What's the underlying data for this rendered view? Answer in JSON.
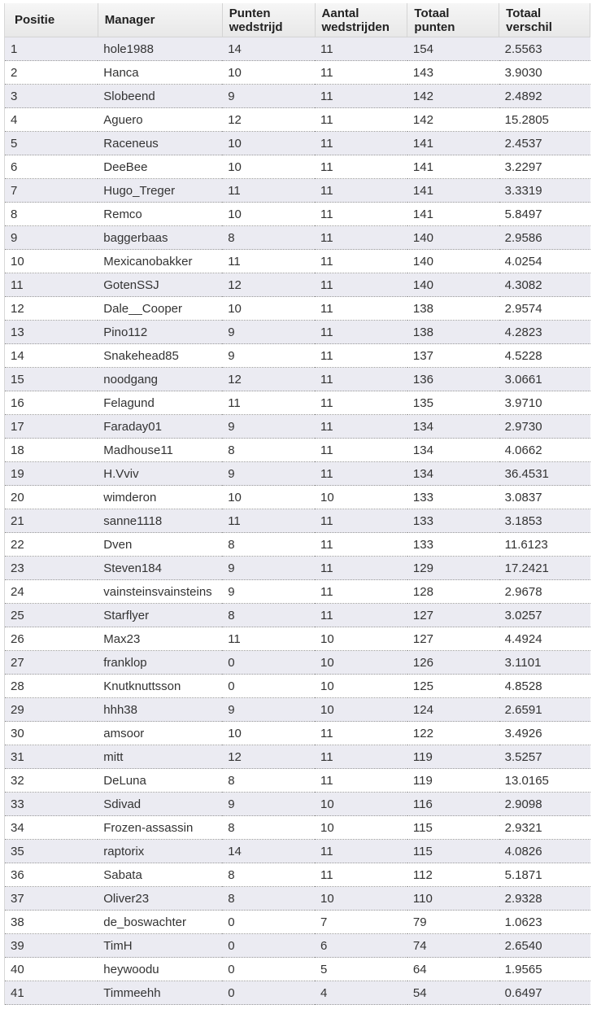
{
  "table": {
    "headers": [
      [
        "Positie",
        ""
      ],
      [
        "Manager",
        ""
      ],
      [
        "Punten",
        "wedstrijd"
      ],
      [
        "Aantal",
        "wedstrijden"
      ],
      [
        "Totaal",
        "punten"
      ],
      [
        "Totaal",
        "verschil"
      ]
    ],
    "rows": [
      [
        "1",
        "hole1988",
        "14",
        "11",
        "154",
        "2.5563"
      ],
      [
        "2",
        "Hanca",
        "10",
        "11",
        "143",
        "3.9030"
      ],
      [
        "3",
        "Slobeend",
        "9",
        "11",
        "142",
        "2.4892"
      ],
      [
        "4",
        "Aguero",
        "12",
        "11",
        "142",
        "15.2805"
      ],
      [
        "5",
        "Raceneus",
        "10",
        "11",
        "141",
        "2.4537"
      ],
      [
        "6",
        "DeeBee",
        "10",
        "11",
        "141",
        "3.2297"
      ],
      [
        "7",
        "Hugo_Treger",
        "11",
        "11",
        "141",
        "3.3319"
      ],
      [
        "8",
        "Remco",
        "10",
        "11",
        "141",
        "5.8497"
      ],
      [
        "9",
        "baggerbaas",
        "8",
        "11",
        "140",
        "2.9586"
      ],
      [
        "10",
        "Mexicanobakker",
        "11",
        "11",
        "140",
        "4.0254"
      ],
      [
        "11",
        "GotenSSJ",
        "12",
        "11",
        "140",
        "4.3082"
      ],
      [
        "12",
        "Dale__Cooper",
        "10",
        "11",
        "138",
        "2.9574"
      ],
      [
        "13",
        "Pino112",
        "9",
        "11",
        "138",
        "4.2823"
      ],
      [
        "14",
        "Snakehead85",
        "9",
        "11",
        "137",
        "4.5228"
      ],
      [
        "15",
        "noodgang",
        "12",
        "11",
        "136",
        "3.0661"
      ],
      [
        "16",
        "Felagund",
        "11",
        "11",
        "135",
        "3.9710"
      ],
      [
        "17",
        "Faraday01",
        "9",
        "11",
        "134",
        "2.9730"
      ],
      [
        "18",
        "Madhouse11",
        "8",
        "11",
        "134",
        "4.0662"
      ],
      [
        "19",
        "H.Vviv",
        "9",
        "11",
        "134",
        "36.4531"
      ],
      [
        "20",
        "wimderon",
        "10",
        "10",
        "133",
        "3.0837"
      ],
      [
        "21",
        "sanne1118",
        "11",
        "11",
        "133",
        "3.1853"
      ],
      [
        "22",
        "Dven",
        "8",
        "11",
        "133",
        "11.6123"
      ],
      [
        "23",
        "Steven184",
        "9",
        "11",
        "129",
        "17.2421"
      ],
      [
        "24",
        "vainsteinsvainsteins",
        "9",
        "11",
        "128",
        "2.9678"
      ],
      [
        "25",
        "Starflyer",
        "8",
        "11",
        "127",
        "3.0257"
      ],
      [
        "26",
        "Max23",
        "11",
        "10",
        "127",
        "4.4924"
      ],
      [
        "27",
        "franklop",
        "0",
        "10",
        "126",
        "3.1101"
      ],
      [
        "28",
        "Knutknuttsson",
        "0",
        "10",
        "125",
        "4.8528"
      ],
      [
        "29",
        "hhh38",
        "9",
        "10",
        "124",
        "2.6591"
      ],
      [
        "30",
        "amsoor",
        "10",
        "11",
        "122",
        "3.4926"
      ],
      [
        "31",
        "mitt",
        "12",
        "11",
        "119",
        "3.5257"
      ],
      [
        "32",
        "DeLuna",
        "8",
        "11",
        "119",
        "13.0165"
      ],
      [
        "33",
        "Sdivad",
        "9",
        "10",
        "116",
        "2.9098"
      ],
      [
        "34",
        "Frozen-assassin",
        "8",
        "10",
        "115",
        "2.9321"
      ],
      [
        "35",
        "raptorix",
        "14",
        "11",
        "115",
        "4.0826"
      ],
      [
        "36",
        "Sabata",
        "8",
        "11",
        "112",
        "5.1871"
      ],
      [
        "37",
        "Oliver23",
        "8",
        "10",
        "110",
        "2.9328"
      ],
      [
        "38",
        "de_boswachter",
        "0",
        "7",
        "79",
        "1.0623"
      ],
      [
        "39",
        "TimH",
        "0",
        "6",
        "74",
        "2.6540"
      ],
      [
        "40",
        "heywoodu",
        "0",
        "5",
        "64",
        "1.9565"
      ],
      [
        "41",
        "Timmeehh",
        "0",
        "4",
        "54",
        "0.6497"
      ]
    ]
  }
}
